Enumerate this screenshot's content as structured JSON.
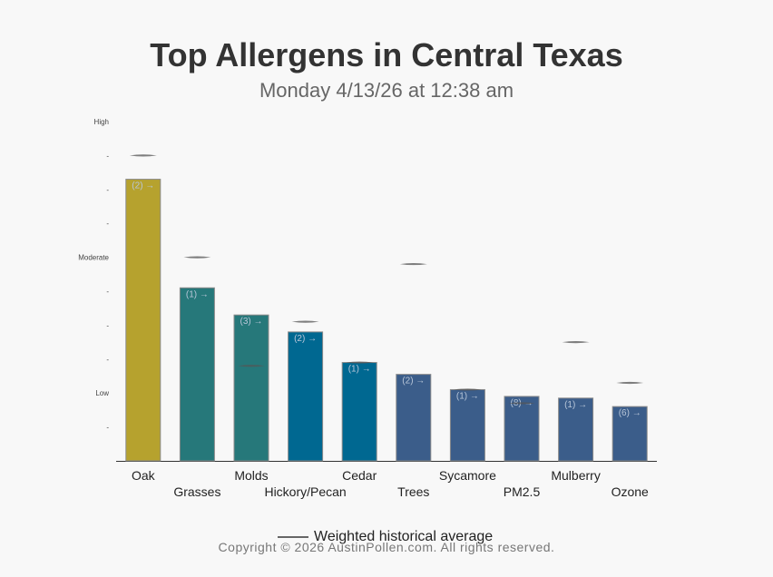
{
  "chart_data": {
    "type": "bar",
    "title": "Top Allergens in Central Texas",
    "subtitle": "Monday 4/13/26 at 12:38 am",
    "y_ticks": [
      {
        "label": "High",
        "value": 10
      },
      {
        "label": "-",
        "value": 9
      },
      {
        "label": "-",
        "value": 8
      },
      {
        "label": "-",
        "value": 7
      },
      {
        "label": "Moderate",
        "value": 6
      },
      {
        "label": "-",
        "value": 5
      },
      {
        "label": "-",
        "value": 4
      },
      {
        "label": "-",
        "value": 3
      },
      {
        "label": "Low",
        "value": 2
      },
      {
        "label": "-",
        "value": 1
      }
    ],
    "ylim": [
      0,
      10
    ],
    "categories": [
      "Oak",
      "Grasses",
      "Molds",
      "Hickory/Pecan",
      "Cedar",
      "Trees",
      "Sycamore",
      "PM2.5",
      "Mulberry",
      "Ozone"
    ],
    "values": [
      8.3,
      5.1,
      4.3,
      3.8,
      2.9,
      2.55,
      2.1,
      1.9,
      1.85,
      1.6
    ],
    "historical": [
      9.0,
      6.0,
      2.8,
      4.1,
      2.9,
      5.8,
      2.1,
      1.7,
      3.5,
      2.3
    ],
    "bar_labels": [
      "(2) →",
      "(1) →",
      "(3) →",
      "(2) →",
      "(1) →",
      "(2) →",
      "(1) →",
      "(8) →",
      "(1) →",
      "(6) →"
    ],
    "colors": [
      "#b6a22e",
      "#26787a",
      "#26787a",
      "#006891",
      "#006891",
      "#3b5d8a",
      "#3b5d8a",
      "#3b5d8a",
      "#3b5d8a",
      "#3b5d8a"
    ],
    "legend": {
      "label": "Weighted historical average",
      "color": "#666666"
    }
  },
  "footer": {
    "copyright": "Copyright © 2026 AustinPollen.com.  All rights reserved."
  }
}
